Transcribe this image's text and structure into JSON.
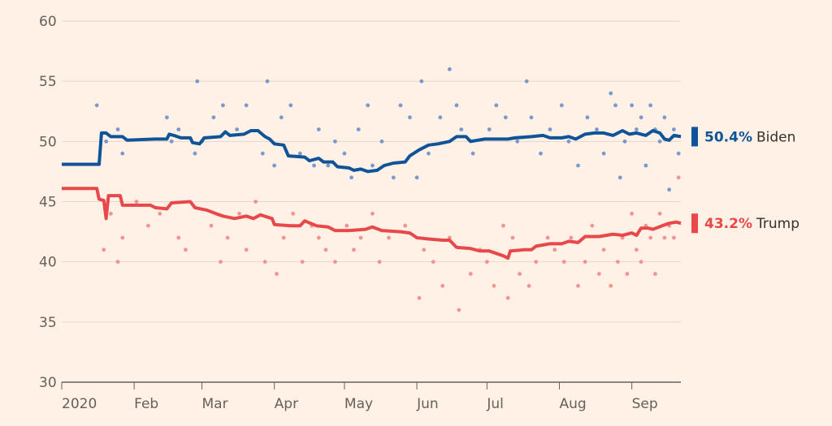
{
  "chart_data": {
    "type": "line",
    "title": "",
    "xlabel": "",
    "ylabel": "",
    "ylim": [
      30,
      60
    ],
    "yticks": [
      30,
      35,
      40,
      45,
      50,
      55,
      60
    ],
    "x_tick_labels": [
      "2020",
      "Feb",
      "Mar",
      "Apr",
      "May",
      "Jun",
      "Jul",
      "Aug",
      "Sep"
    ],
    "x_tick_dates": [
      "2020-01-01",
      "2020-02-01",
      "2020-03-01",
      "2020-04-01",
      "2020-05-01",
      "2020-06-01",
      "2020-07-01",
      "2020-08-01",
      "2020-09-01"
    ],
    "xlim": [
      "2020-01-01",
      "2020-09-22"
    ],
    "grid": true,
    "series": [
      {
        "name": "Biden",
        "end_pct": "50.4%",
        "color": "#0f5499",
        "dot_color": "#6d8fc9",
        "values": [
          [
            "2020-01-01",
            48.1
          ],
          [
            "2020-01-17",
            48.1
          ],
          [
            "2020-01-18",
            50.7
          ],
          [
            "2020-01-20",
            50.7
          ],
          [
            "2020-01-22",
            50.4
          ],
          [
            "2020-01-27",
            50.4
          ],
          [
            "2020-01-29",
            50.1
          ],
          [
            "2020-02-10",
            50.2
          ],
          [
            "2020-02-15",
            50.2
          ],
          [
            "2020-02-16",
            50.6
          ],
          [
            "2020-02-18",
            50.5
          ],
          [
            "2020-02-21",
            50.3
          ],
          [
            "2020-02-25",
            50.3
          ],
          [
            "2020-02-26",
            49.9
          ],
          [
            "2020-02-29",
            49.8
          ],
          [
            "2020-03-02",
            50.3
          ],
          [
            "2020-03-09",
            50.4
          ],
          [
            "2020-03-11",
            50.8
          ],
          [
            "2020-03-13",
            50.5
          ],
          [
            "2020-03-19",
            50.6
          ],
          [
            "2020-03-22",
            50.9
          ],
          [
            "2020-03-25",
            50.9
          ],
          [
            "2020-03-28",
            50.4
          ],
          [
            "2020-03-30",
            50.2
          ],
          [
            "2020-04-01",
            49.8
          ],
          [
            "2020-04-05",
            49.7
          ],
          [
            "2020-04-07",
            48.8
          ],
          [
            "2020-04-14",
            48.7
          ],
          [
            "2020-04-16",
            48.4
          ],
          [
            "2020-04-20",
            48.6
          ],
          [
            "2020-04-22",
            48.3
          ],
          [
            "2020-04-26",
            48.3
          ],
          [
            "2020-04-28",
            47.9
          ],
          [
            "2020-05-03",
            47.8
          ],
          [
            "2020-05-05",
            47.6
          ],
          [
            "2020-05-08",
            47.7
          ],
          [
            "2020-05-11",
            47.5
          ],
          [
            "2020-05-15",
            47.6
          ],
          [
            "2020-05-18",
            48.0
          ],
          [
            "2020-05-22",
            48.2
          ],
          [
            "2020-05-27",
            48.3
          ],
          [
            "2020-05-29",
            48.8
          ],
          [
            "2020-06-02",
            49.3
          ],
          [
            "2020-06-06",
            49.7
          ],
          [
            "2020-06-10",
            49.8
          ],
          [
            "2020-06-15",
            50.0
          ],
          [
            "2020-06-18",
            50.4
          ],
          [
            "2020-06-22",
            50.4
          ],
          [
            "2020-06-24",
            50.0
          ],
          [
            "2020-06-30",
            50.2
          ],
          [
            "2020-07-06",
            50.2
          ],
          [
            "2020-07-10",
            50.2
          ],
          [
            "2020-07-13",
            50.3
          ],
          [
            "2020-07-20",
            50.4
          ],
          [
            "2020-07-25",
            50.5
          ],
          [
            "2020-07-28",
            50.3
          ],
          [
            "2020-08-02",
            50.3
          ],
          [
            "2020-08-05",
            50.4
          ],
          [
            "2020-08-08",
            50.2
          ],
          [
            "2020-08-12",
            50.6
          ],
          [
            "2020-08-16",
            50.7
          ],
          [
            "2020-08-20",
            50.7
          ],
          [
            "2020-08-24",
            50.5
          ],
          [
            "2020-08-28",
            50.9
          ],
          [
            "2020-08-31",
            50.6
          ],
          [
            "2020-09-03",
            50.7
          ],
          [
            "2020-09-07",
            50.5
          ],
          [
            "2020-09-10",
            50.9
          ],
          [
            "2020-09-13",
            50.7
          ],
          [
            "2020-09-15",
            50.2
          ],
          [
            "2020-09-17",
            50.1
          ],
          [
            "2020-09-19",
            50.5
          ],
          [
            "2020-09-22",
            50.4
          ]
        ],
        "polls": [
          [
            "2020-01-16",
            53
          ],
          [
            "2020-01-20",
            50
          ],
          [
            "2020-01-25",
            51
          ],
          [
            "2020-01-27",
            49
          ],
          [
            "2020-02-15",
            52
          ],
          [
            "2020-02-17",
            50
          ],
          [
            "2020-02-20",
            51
          ],
          [
            "2020-02-27",
            49
          ],
          [
            "2020-02-28",
            55
          ],
          [
            "2020-03-01",
            50
          ],
          [
            "2020-03-06",
            52
          ],
          [
            "2020-03-10",
            53
          ],
          [
            "2020-03-16",
            51
          ],
          [
            "2020-03-20",
            53
          ],
          [
            "2020-03-27",
            49
          ],
          [
            "2020-03-29",
            55
          ],
          [
            "2020-04-01",
            48
          ],
          [
            "2020-04-04",
            52
          ],
          [
            "2020-04-08",
            53
          ],
          [
            "2020-04-12",
            49
          ],
          [
            "2020-04-18",
            48
          ],
          [
            "2020-04-20",
            51
          ],
          [
            "2020-04-24",
            48
          ],
          [
            "2020-04-27",
            50
          ],
          [
            "2020-05-01",
            49
          ],
          [
            "2020-05-04",
            47
          ],
          [
            "2020-05-07",
            51
          ],
          [
            "2020-05-11",
            53
          ],
          [
            "2020-05-13",
            48
          ],
          [
            "2020-05-17",
            50
          ],
          [
            "2020-05-22",
            47
          ],
          [
            "2020-05-25",
            53
          ],
          [
            "2020-05-29",
            52
          ],
          [
            "2020-06-01",
            47
          ],
          [
            "2020-06-03",
            55
          ],
          [
            "2020-06-06",
            49
          ],
          [
            "2020-06-11",
            52
          ],
          [
            "2020-06-15",
            56
          ],
          [
            "2020-06-18",
            53
          ],
          [
            "2020-06-20",
            51
          ],
          [
            "2020-06-25",
            49
          ],
          [
            "2020-07-02",
            51
          ],
          [
            "2020-07-05",
            53
          ],
          [
            "2020-07-09",
            52
          ],
          [
            "2020-07-14",
            50
          ],
          [
            "2020-07-18",
            55
          ],
          [
            "2020-07-20",
            52
          ],
          [
            "2020-07-24",
            49
          ],
          [
            "2020-07-28",
            51
          ],
          [
            "2020-08-02",
            53
          ],
          [
            "2020-08-05",
            50
          ],
          [
            "2020-08-09",
            48
          ],
          [
            "2020-08-13",
            52
          ],
          [
            "2020-08-17",
            51
          ],
          [
            "2020-08-20",
            49
          ],
          [
            "2020-08-23",
            54
          ],
          [
            "2020-08-25",
            53
          ],
          [
            "2020-08-27",
            47
          ],
          [
            "2020-08-29",
            50
          ],
          [
            "2020-09-01",
            53
          ],
          [
            "2020-09-03",
            51
          ],
          [
            "2020-09-05",
            52
          ],
          [
            "2020-09-07",
            48
          ],
          [
            "2020-09-09",
            53
          ],
          [
            "2020-09-11",
            51
          ],
          [
            "2020-09-13",
            50
          ],
          [
            "2020-09-15",
            52
          ],
          [
            "2020-09-17",
            46
          ],
          [
            "2020-09-19",
            51
          ],
          [
            "2020-09-21",
            49
          ]
        ]
      },
      {
        "name": "Trump",
        "end_pct": "43.2%",
        "color": "#e8484a",
        "dot_color": "#ef8a8a",
        "values": [
          [
            "2020-01-01",
            46.1
          ],
          [
            "2020-01-16",
            46.1
          ],
          [
            "2020-01-17",
            45.2
          ],
          [
            "2020-01-19",
            45.1
          ],
          [
            "2020-01-20",
            43.6
          ],
          [
            "2020-01-21",
            45.5
          ],
          [
            "2020-01-26",
            45.5
          ],
          [
            "2020-01-27",
            44.7
          ],
          [
            "2020-02-08",
            44.7
          ],
          [
            "2020-02-10",
            44.5
          ],
          [
            "2020-02-15",
            44.4
          ],
          [
            "2020-02-17",
            44.9
          ],
          [
            "2020-02-25",
            45.0
          ],
          [
            "2020-02-27",
            44.5
          ],
          [
            "2020-03-03",
            44.3
          ],
          [
            "2020-03-07",
            44.0
          ],
          [
            "2020-03-10",
            43.8
          ],
          [
            "2020-03-15",
            43.6
          ],
          [
            "2020-03-20",
            43.8
          ],
          [
            "2020-03-23",
            43.6
          ],
          [
            "2020-03-26",
            43.9
          ],
          [
            "2020-03-31",
            43.6
          ],
          [
            "2020-04-01",
            43.1
          ],
          [
            "2020-04-08",
            43.0
          ],
          [
            "2020-04-12",
            43.0
          ],
          [
            "2020-04-14",
            43.4
          ],
          [
            "2020-04-19",
            43.0
          ],
          [
            "2020-04-24",
            42.9
          ],
          [
            "2020-04-27",
            42.6
          ],
          [
            "2020-05-03",
            42.6
          ],
          [
            "2020-05-10",
            42.7
          ],
          [
            "2020-05-13",
            42.9
          ],
          [
            "2020-05-17",
            42.6
          ],
          [
            "2020-05-25",
            42.5
          ],
          [
            "2020-05-29",
            42.4
          ],
          [
            "2020-06-01",
            42.0
          ],
          [
            "2020-06-06",
            41.9
          ],
          [
            "2020-06-12",
            41.8
          ],
          [
            "2020-06-15",
            41.8
          ],
          [
            "2020-06-18",
            41.2
          ],
          [
            "2020-06-24",
            41.1
          ],
          [
            "2020-06-28",
            40.9
          ],
          [
            "2020-07-02",
            40.9
          ],
          [
            "2020-07-05",
            40.7
          ],
          [
            "2020-07-08",
            40.5
          ],
          [
            "2020-07-10",
            40.3
          ],
          [
            "2020-07-11",
            40.9
          ],
          [
            "2020-07-17",
            41.0
          ],
          [
            "2020-07-20",
            41.0
          ],
          [
            "2020-07-22",
            41.3
          ],
          [
            "2020-07-28",
            41.5
          ],
          [
            "2020-08-02",
            41.5
          ],
          [
            "2020-08-05",
            41.7
          ],
          [
            "2020-08-09",
            41.6
          ],
          [
            "2020-08-12",
            42.1
          ],
          [
            "2020-08-18",
            42.1
          ],
          [
            "2020-08-24",
            42.3
          ],
          [
            "2020-08-28",
            42.2
          ],
          [
            "2020-09-01",
            42.4
          ],
          [
            "2020-09-03",
            42.2
          ],
          [
            "2020-09-05",
            42.8
          ],
          [
            "2020-09-08",
            42.8
          ],
          [
            "2020-09-10",
            42.7
          ],
          [
            "2020-09-14",
            43.0
          ],
          [
            "2020-09-17",
            43.2
          ],
          [
            "2020-09-20",
            43.3
          ],
          [
            "2020-09-22",
            43.2
          ]
        ],
        "polls": [
          [
            "2020-01-19",
            41
          ],
          [
            "2020-01-22",
            44
          ],
          [
            "2020-01-25",
            40
          ],
          [
            "2020-01-27",
            42
          ],
          [
            "2020-02-02",
            45
          ],
          [
            "2020-02-07",
            43
          ],
          [
            "2020-02-12",
            44
          ],
          [
            "2020-02-20",
            42
          ],
          [
            "2020-02-23",
            41
          ],
          [
            "2020-03-05",
            43
          ],
          [
            "2020-03-09",
            40
          ],
          [
            "2020-03-12",
            42
          ],
          [
            "2020-03-17",
            44
          ],
          [
            "2020-03-20",
            41
          ],
          [
            "2020-03-24",
            45
          ],
          [
            "2020-03-28",
            40
          ],
          [
            "2020-04-02",
            39
          ],
          [
            "2020-04-05",
            42
          ],
          [
            "2020-04-09",
            44
          ],
          [
            "2020-04-13",
            40
          ],
          [
            "2020-04-17",
            43
          ],
          [
            "2020-04-20",
            42
          ],
          [
            "2020-04-23",
            41
          ],
          [
            "2020-04-27",
            40
          ],
          [
            "2020-05-02",
            43
          ],
          [
            "2020-05-05",
            41
          ],
          [
            "2020-05-08",
            42
          ],
          [
            "2020-05-13",
            44
          ],
          [
            "2020-05-16",
            40
          ],
          [
            "2020-05-20",
            42
          ],
          [
            "2020-05-27",
            43
          ],
          [
            "2020-06-02",
            37
          ],
          [
            "2020-06-04",
            41
          ],
          [
            "2020-06-08",
            40
          ],
          [
            "2020-06-12",
            38
          ],
          [
            "2020-06-15",
            42
          ],
          [
            "2020-06-19",
            36
          ],
          [
            "2020-06-24",
            39
          ],
          [
            "2020-06-28",
            41
          ],
          [
            "2020-07-01",
            40
          ],
          [
            "2020-07-04",
            38
          ],
          [
            "2020-07-08",
            43
          ],
          [
            "2020-07-10",
            37
          ],
          [
            "2020-07-12",
            42
          ],
          [
            "2020-07-15",
            39
          ],
          [
            "2020-07-19",
            38
          ],
          [
            "2020-07-22",
            40
          ],
          [
            "2020-07-27",
            42
          ],
          [
            "2020-07-30",
            41
          ],
          [
            "2020-08-03",
            40
          ],
          [
            "2020-08-06",
            42
          ],
          [
            "2020-08-09",
            38
          ],
          [
            "2020-08-12",
            40
          ],
          [
            "2020-08-15",
            43
          ],
          [
            "2020-08-18",
            39
          ],
          [
            "2020-08-20",
            41
          ],
          [
            "2020-08-23",
            38
          ],
          [
            "2020-08-26",
            40
          ],
          [
            "2020-08-28",
            42
          ],
          [
            "2020-08-30",
            39
          ],
          [
            "2020-09-01",
            44
          ],
          [
            "2020-09-03",
            41
          ],
          [
            "2020-09-05",
            40
          ],
          [
            "2020-09-07",
            43
          ],
          [
            "2020-09-09",
            42
          ],
          [
            "2020-09-11",
            39
          ],
          [
            "2020-09-13",
            44
          ],
          [
            "2020-09-15",
            42
          ],
          [
            "2020-09-17",
            43
          ],
          [
            "2020-09-19",
            42
          ],
          [
            "2020-09-21",
            47
          ]
        ]
      }
    ]
  }
}
